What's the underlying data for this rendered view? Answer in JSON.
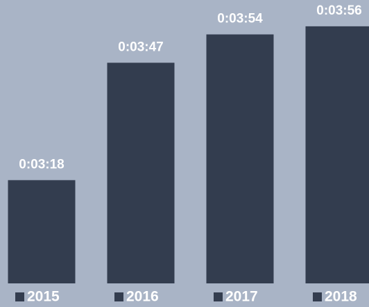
{
  "chart_data": {
    "type": "bar",
    "categories": [
      "2015",
      "2016",
      "2017",
      "2018"
    ],
    "values": [
      198,
      227,
      234,
      236
    ],
    "value_labels": [
      "0:03:18",
      "0:03:47",
      "0:03:54",
      "0:03:56"
    ],
    "color": "#333d4f",
    "ylim": [
      172.5,
      242.5
    ]
  }
}
